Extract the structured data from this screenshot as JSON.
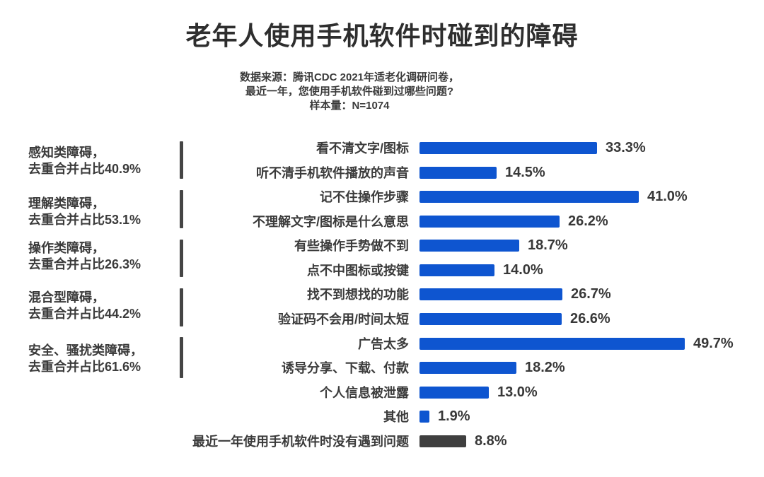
{
  "chart_data": {
    "type": "bar",
    "orientation": "horizontal",
    "title": "老年人使用手机软件时碰到的障碍",
    "subtitle_lines": [
      "数据来源：腾讯CDC 2021年适老化调研问卷，",
      "最近一年，您使用手机软件碰到过哪些问题?",
      "样本量：N=1074"
    ],
    "sample_size": "N=1074",
    "unit": "%",
    "xlim": [
      0,
      50
    ],
    "grid": false,
    "legend": false,
    "categories": [
      "看不清文字/图标",
      "听不清手机软件播放的声音",
      "记不住操作步骤",
      "不理解文字/图标是什么意思",
      "有些操作手势做不到",
      "点不中图标或按键",
      "找不到想找的功能",
      "验证码不会用/时间太短",
      "广告太多",
      "诱导分享、下载、付款",
      "个人信息被泄露",
      "其他",
      "最近一年使用手机软件时没有遇到问题"
    ],
    "values": [
      33.3,
      14.5,
      41.0,
      26.2,
      18.7,
      14.0,
      26.7,
      26.6,
      49.7,
      18.2,
      13.0,
      1.9,
      8.8
    ],
    "value_labels": [
      "33.3%",
      "14.5%",
      "41.0%",
      "26.2%",
      "18.7%",
      "14.0%",
      "26.7%",
      "26.6%",
      "49.7%",
      "18.2%",
      "13.0%",
      "1.9%",
      "8.8%"
    ],
    "bar_color_keys": [
      "blue",
      "blue",
      "blue",
      "blue",
      "blue",
      "blue",
      "blue",
      "blue",
      "blue",
      "blue",
      "blue",
      "blue",
      "dark"
    ],
    "groups": [
      {
        "line1": "感知类障碍，",
        "line2": "去重合并占比40.9%",
        "dedup_combined_percent": 40.9,
        "covers_rows": [
          1,
          2
        ]
      },
      {
        "line1": "理解类障碍，",
        "line2": "去重合并占比53.1%",
        "dedup_combined_percent": 53.1,
        "covers_rows": [
          3,
          4
        ]
      },
      {
        "line1": "操作类障碍，",
        "line2": "去重合并占比26.3%",
        "dedup_combined_percent": 26.3,
        "covers_rows": [
          5,
          6
        ]
      },
      {
        "line1": "混合型障碍，",
        "line2": "去重合并占比44.2%",
        "dedup_combined_percent": 44.2,
        "covers_rows": [
          7,
          8
        ]
      },
      {
        "line1": "安全、骚扰类障碍，",
        "line2": "去重合并占比61.6%",
        "dedup_combined_percent": 61.6,
        "covers_rows": [
          9,
          10
        ]
      }
    ]
  },
  "colors": {
    "bar_blue": "#0E55D0",
    "bar_dark": "#3F3F3F",
    "text": "#3B3B3B",
    "title": "#2E2E2E",
    "divider": "#454545",
    "background": "#FFFFFF"
  }
}
